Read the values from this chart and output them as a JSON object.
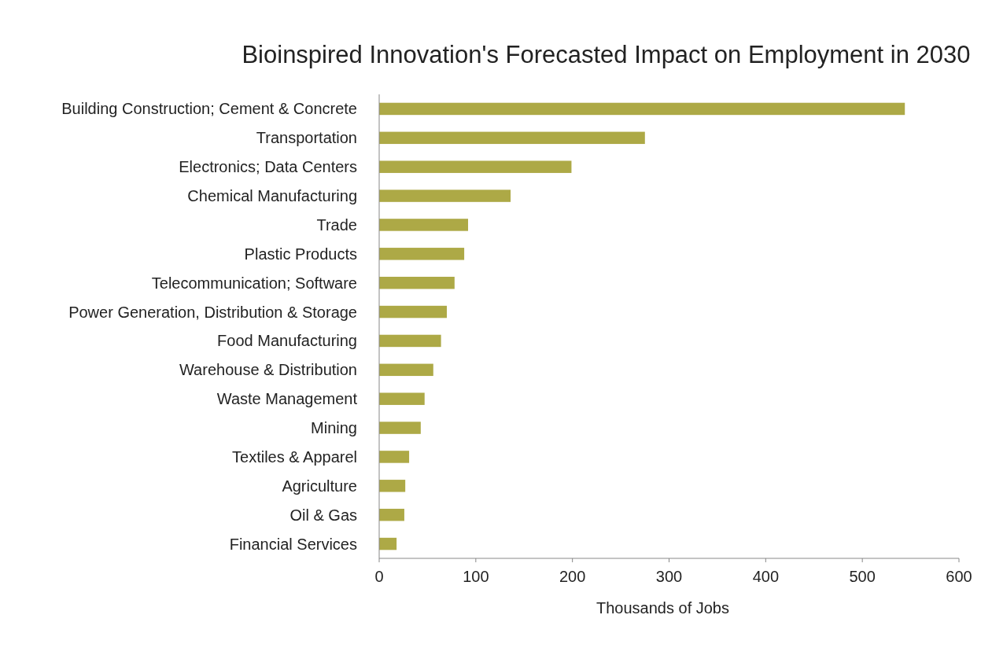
{
  "chart_data": {
    "type": "bar",
    "orientation": "horizontal",
    "title": "Bioinspired Innovation's Forecasted Impact on Employment in 2030",
    "xlabel": "Thousands of Jobs",
    "categories": [
      "Building Construction; Cement & Concrete",
      "Transportation",
      "Electronics; Data Centers",
      "Chemical Manufacturing",
      "Trade",
      "Plastic Products",
      "Telecommunication; Software",
      "Power Generation, Distribution & Storage",
      "Food Manufacturing",
      "Warehouse & Distribution",
      "Waste Management",
      "Mining",
      "Textiles & Apparel",
      "Agriculture",
      "Oil & Gas",
      "Financial Services"
    ],
    "values": [
      544,
      275,
      199,
      136,
      92,
      88,
      78,
      70,
      64,
      56,
      47,
      43,
      31,
      27,
      26,
      18
    ],
    "color": "#ada946",
    "xlim": [
      0,
      600
    ],
    "xticks": [
      0,
      100,
      200,
      300,
      400,
      500,
      600
    ],
    "grid": false
  }
}
